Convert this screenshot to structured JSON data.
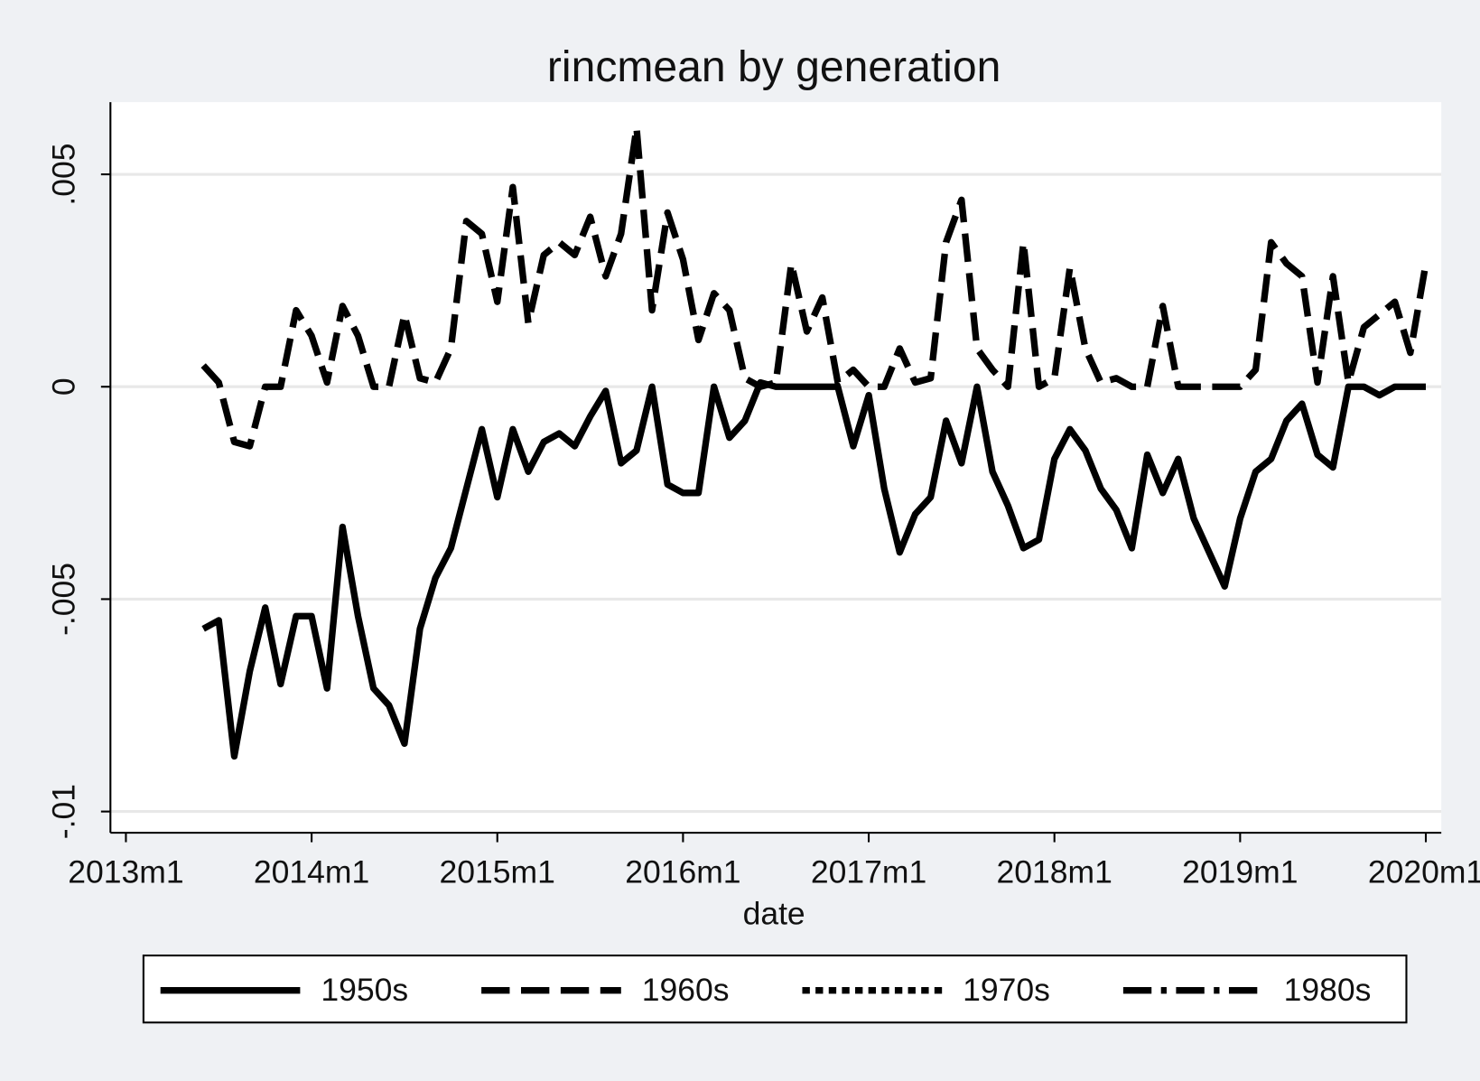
{
  "chart_data": {
    "type": "line",
    "title": "rincmean by generation",
    "xlabel": "date",
    "x": [
      "2013m6",
      "2013m7",
      "2013m8",
      "2013m9",
      "2013m10",
      "2013m11",
      "2013m12",
      "2014m1",
      "2014m2",
      "2014m3",
      "2014m4",
      "2014m5",
      "2014m6",
      "2014m7",
      "2014m8",
      "2014m9",
      "2014m10",
      "2014m11",
      "2014m12",
      "2015m1",
      "2015m2",
      "2015m3",
      "2015m4",
      "2015m5",
      "2015m6",
      "2015m7",
      "2015m8",
      "2015m9",
      "2015m10",
      "2015m11",
      "2015m12",
      "2016m1",
      "2016m2",
      "2016m3",
      "2016m4",
      "2016m5",
      "2016m6",
      "2016m7",
      "2016m8",
      "2016m9",
      "2016m10",
      "2016m11",
      "2016m12",
      "2017m1",
      "2017m2",
      "2017m3",
      "2017m4",
      "2017m5",
      "2017m6",
      "2017m7",
      "2017m8",
      "2017m9",
      "2017m10",
      "2017m11",
      "2017m12",
      "2018m1",
      "2018m2",
      "2018m3",
      "2018m4",
      "2018m5",
      "2018m6",
      "2018m7",
      "2018m8",
      "2018m9",
      "2018m10",
      "2018m11",
      "2018m12",
      "2019m1",
      "2019m2",
      "2019m3",
      "2019m4",
      "2019m5",
      "2019m6",
      "2019m7",
      "2019m8",
      "2019m9",
      "2019m10",
      "2019m11",
      "2019m12",
      "2020m1"
    ],
    "series": [
      {
        "name": "1950s",
        "color": "#000000",
        "dash": "solid",
        "values": [
          -0.0057,
          -0.0055,
          -0.0087,
          -0.0067,
          -0.0052,
          -0.007,
          -0.0054,
          -0.0054,
          -0.0071,
          -0.0033,
          -0.0054,
          -0.0071,
          -0.0075,
          -0.0084,
          -0.0057,
          -0.0045,
          -0.0038,
          -0.0024,
          -0.001,
          -0.0026,
          -0.001,
          -0.002,
          -0.0013,
          -0.0011,
          -0.0014,
          -0.0007,
          -0.0001,
          -0.0018,
          -0.0015,
          0,
          -0.0023,
          -0.0025,
          -0.0025,
          0,
          -0.0012,
          -0.0008,
          0.0001,
          0,
          0,
          0,
          0,
          0,
          -0.0014,
          -0.0002,
          -0.0024,
          -0.0039,
          -0.003,
          -0.0026,
          -0.0008,
          -0.0018,
          0,
          -0.002,
          -0.0028,
          -0.0038,
          -0.0036,
          -0.0017,
          -0.001,
          -0.0015,
          -0.0024,
          -0.0029,
          -0.0038,
          -0.0016,
          -0.0025,
          -0.0017,
          -0.0031,
          -0.0039,
          -0.0047,
          -0.0031,
          -0.002,
          -0.0017,
          -0.0008,
          -0.0004,
          -0.0016,
          -0.0019,
          0,
          0,
          -0.0002,
          0,
          0,
          0
        ]
      },
      {
        "name": "1960s",
        "color": "#000000",
        "dash": "dash",
        "values": [
          0.0005,
          0.0001,
          -0.0013,
          -0.0014,
          0,
          0,
          0.0018,
          0.0012,
          0.0001,
          0.0019,
          0.0012,
          0,
          0,
          0.0017,
          0.0002,
          0.0001,
          0.0009,
          0.0039,
          0.0036,
          0.002,
          0.0047,
          0.0015,
          0.0031,
          0.0034,
          0.0031,
          0.004,
          0.0026,
          0.0036,
          0.0061,
          0.0018,
          0.0041,
          0.003,
          0.0011,
          0.0022,
          0.0018,
          0.0002,
          0,
          0.0001,
          0.0029,
          0.0013,
          0.0021,
          0.0001,
          0.0004,
          0,
          0,
          0.0009,
          0.0001,
          0.0002,
          0.0034,
          0.0044,
          0.0009,
          0.0004,
          0,
          0.0034,
          0,
          0.0002,
          0.0028,
          0.0009,
          0.0001,
          0.0002,
          0,
          0,
          0.0019,
          0,
          0,
          0,
          0,
          0,
          0.0004,
          0.0034,
          0.0029,
          0.0026,
          0.0001,
          0.0026,
          0.0001,
          0.0014,
          0.0017,
          0.002,
          0.0008,
          0.0029
        ]
      },
      {
        "name": "1970s",
        "color": "#000000",
        "dash": "dot",
        "values": [
          null,
          null,
          null,
          null,
          null,
          null,
          null,
          null,
          null,
          null,
          null,
          null,
          null,
          null,
          null,
          null,
          null,
          null,
          null,
          null,
          null,
          null,
          null,
          null,
          null,
          null,
          null,
          null,
          null,
          null,
          null,
          null,
          null,
          null,
          null,
          null,
          null,
          null,
          null,
          null,
          null,
          null,
          null,
          null,
          null,
          null,
          null,
          null,
          null,
          null,
          null,
          null,
          null,
          null,
          null,
          null,
          null,
          null,
          null,
          null,
          null,
          null,
          null,
          null,
          null,
          null,
          null,
          null,
          null,
          null,
          null,
          null,
          null,
          null,
          null,
          null,
          null,
          null,
          null,
          null
        ]
      },
      {
        "name": "1980s",
        "color": "#000000",
        "dash": "dashdot",
        "values": [
          null,
          null,
          null,
          null,
          null,
          null,
          null,
          null,
          null,
          null,
          null,
          null,
          null,
          null,
          null,
          null,
          null,
          null,
          null,
          null,
          null,
          null,
          null,
          null,
          null,
          null,
          null,
          null,
          null,
          null,
          null,
          null,
          null,
          null,
          null,
          null,
          null,
          null,
          null,
          null,
          null,
          null,
          null,
          null,
          null,
          null,
          null,
          null,
          null,
          null,
          null,
          null,
          null,
          null,
          null,
          null,
          null,
          null,
          null,
          null,
          null,
          null,
          null,
          null,
          null,
          null,
          null,
          null,
          null,
          null,
          null,
          null,
          null,
          null,
          null,
          null,
          null,
          null,
          null,
          null
        ]
      }
    ],
    "xlim": [
      "2012m12",
      "2020m2"
    ],
    "xticks": [
      "2013m1",
      "2014m1",
      "2015m1",
      "2016m1",
      "2017m1",
      "2018m1",
      "2019m1",
      "2020m1"
    ],
    "ylim": [
      -0.0105,
      0.0067
    ],
    "yticks": [
      {
        "value": -0.01,
        "label": "-.01"
      },
      {
        "value": -0.005,
        "label": "-.005"
      },
      0,
      {
        "value": 0.005,
        "label": ".005"
      }
    ],
    "grid": true,
    "legend": "bottom"
  }
}
